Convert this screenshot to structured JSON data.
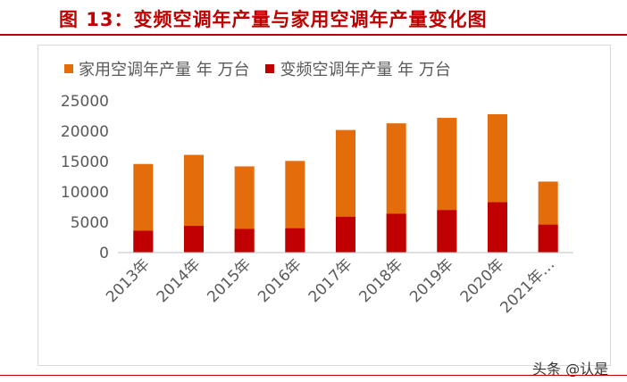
{
  "header": {
    "title": "图 13：变频空调年产量与家用空调年产量变化图"
  },
  "watermark": "头条 @认是",
  "colors": {
    "household": "#e46c0a",
    "inverter": "#c00000",
    "title": "#c00000",
    "axis_text": "#595959"
  },
  "chart_data": {
    "type": "bar",
    "stacking": "overlay",
    "categories": [
      "2013年",
      "2014年",
      "2015年",
      "2016年",
      "2017年",
      "2018年",
      "2019年",
      "2020年",
      "2021年…"
    ],
    "series": [
      {
        "name": "家用空调年产量  年  万台",
        "color": "#e46c0a",
        "values": [
          14600,
          16100,
          14200,
          15100,
          20200,
          21300,
          22200,
          22800,
          11700
        ]
      },
      {
        "name": "变频空调年产量  年  万台",
        "color": "#c00000",
        "values": [
          3600,
          4400,
          3900,
          4000,
          5900,
          6400,
          7000,
          8300,
          4600
        ]
      }
    ],
    "yticks": [
      0,
      5000,
      10000,
      15000,
      20000,
      25000
    ],
    "ylim": [
      0,
      25000
    ],
    "grid": false,
    "legend_position": "top-left"
  }
}
